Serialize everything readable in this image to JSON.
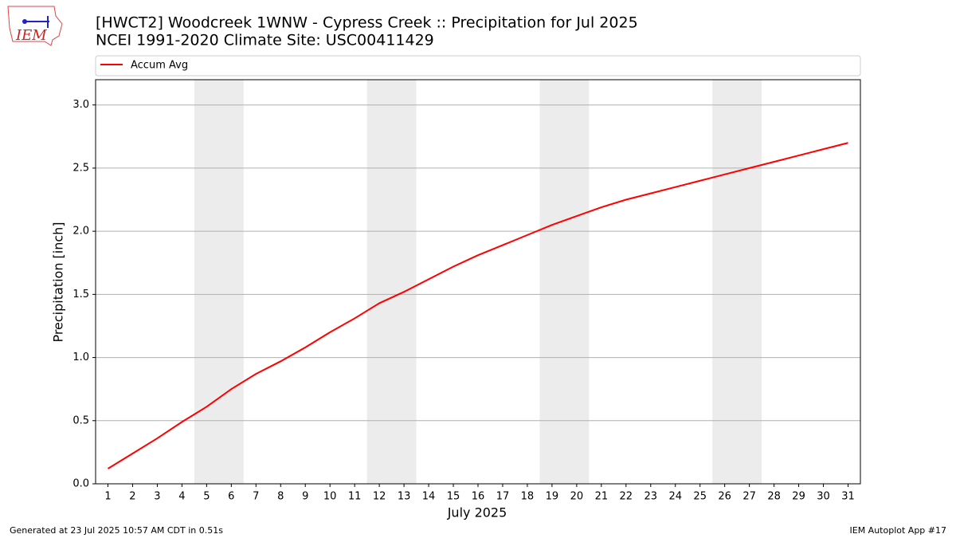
{
  "logo_text": "IEM",
  "footer": {
    "left": "Generated at 23 Jul 2025 10:57 AM CDT in 0.51s",
    "right": "IEM Autoplot App #17"
  },
  "chart_data": {
    "type": "line",
    "title": "[HWCT2] Woodcreek 1WNW - Cypress Creek :: Precipitation for Jul 2025",
    "subtitle": "NCEI 1991-2020 Climate Site: USC00411429",
    "x_label": "July 2025",
    "y_label": "Precipitation [inch]",
    "x": [
      1,
      2,
      3,
      4,
      5,
      6,
      7,
      8,
      9,
      10,
      11,
      12,
      13,
      14,
      15,
      16,
      17,
      18,
      19,
      20,
      21,
      22,
      23,
      24,
      25,
      26,
      27,
      28,
      29,
      30,
      31
    ],
    "series": [
      {
        "name": "Accum Avg",
        "color": "#ff0000",
        "values": [
          0.12,
          0.24,
          0.36,
          0.49,
          0.61,
          0.75,
          0.87,
          0.97,
          1.08,
          1.2,
          1.31,
          1.43,
          1.52,
          1.62,
          1.72,
          1.81,
          1.89,
          1.97,
          2.05,
          2.12,
          2.19,
          2.25,
          2.3,
          2.35,
          2.4,
          2.45,
          2.5,
          2.55,
          2.6,
          2.65,
          2.7
        ]
      }
    ],
    "xlim": [
      0.5,
      31.5
    ],
    "xticks": [
      1,
      2,
      3,
      4,
      5,
      6,
      7,
      8,
      9,
      10,
      11,
      12,
      13,
      14,
      15,
      16,
      17,
      18,
      19,
      20,
      21,
      22,
      23,
      24,
      25,
      26,
      27,
      28,
      29,
      30,
      31
    ],
    "ylim": [
      0,
      3.2
    ],
    "yticks": [
      {
        "value": 0,
        "label": "0.0"
      },
      0.5,
      {
        "value": 1,
        "label": "1.0"
      },
      1.5,
      {
        "value": 2,
        "label": "2.0"
      },
      2.5,
      {
        "value": 3,
        "label": "3.0"
      }
    ],
    "grid": true,
    "legend": "top",
    "shaded_spans": [
      [
        4.5,
        6.5
      ],
      [
        11.5,
        13.5
      ],
      [
        18.5,
        20.5
      ],
      [
        25.5,
        27.5
      ]
    ],
    "shade_color": "#ececec"
  }
}
